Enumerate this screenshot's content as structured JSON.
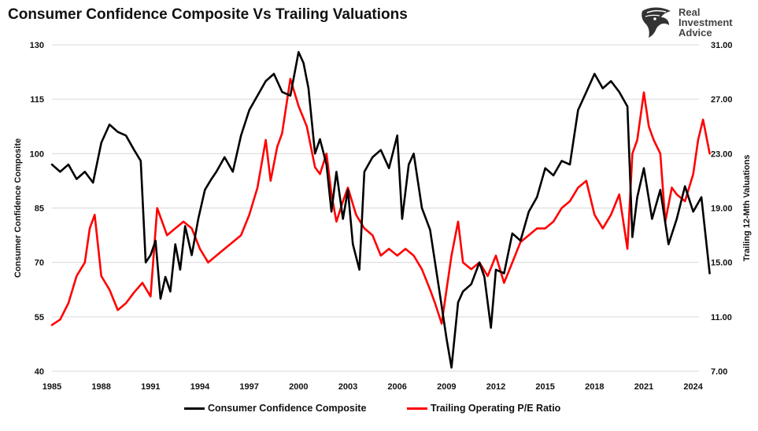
{
  "title": "Consumer Confidence Composite Vs Trailing Valuations",
  "logo": {
    "line1": "Real",
    "line2": "Investment",
    "line3": "Advice",
    "icon": "eagle-head-icon"
  },
  "colors": {
    "confidence": "#000000",
    "pe": "#ff0000",
    "grid": "#d9d9d9"
  },
  "chart_data": {
    "type": "line",
    "title": "Consumer Confidence Composite Vs Trailing Valuations",
    "xlabel": "",
    "ylabel_left": "Consumer Confidence Composite",
    "ylabel_right": "Trailing 12-Mth Valuations",
    "xlim": [
      1985,
      2025.5
    ],
    "ylim_left": [
      40,
      130
    ],
    "ylim_right": [
      7.0,
      31.0
    ],
    "x_ticks": [
      "1985",
      "1988",
      "1991",
      "1994",
      "1997",
      "2000",
      "2003",
      "2006",
      "2009",
      "2012",
      "2015",
      "2018",
      "2021",
      "2024"
    ],
    "y_left_ticks": [
      "130",
      "115",
      "100",
      "85",
      "70",
      "55",
      "40"
    ],
    "y_right_ticks": [
      "31.00",
      "27.00",
      "23.00",
      "19.00",
      "15.00",
      "11.00",
      "7.00"
    ],
    "grid": "horizontal",
    "legend_position": "bottom",
    "series": [
      {
        "name": "Consumer Confidence Composite",
        "axis": "left",
        "x": [
          1985,
          1985.5,
          1986,
          1986.5,
          1987,
          1987.5,
          1988,
          1988.5,
          1989,
          1989.5,
          1990,
          1990.4,
          1990.7,
          1991,
          1991.3,
          1991.6,
          1991.9,
          1992.2,
          1992.5,
          1992.8,
          1993.1,
          1993.5,
          1993.9,
          1994.3,
          1994.7,
          1995,
          1995.5,
          1996,
          1996.5,
          1997,
          1997.5,
          1998,
          1998.5,
          1999,
          1999.5,
          2000,
          2000.3,
          2000.6,
          2001,
          2001.3,
          2001.7,
          2002,
          2002.3,
          2002.7,
          2003,
          2003.3,
          2003.7,
          2004,
          2004.5,
          2005,
          2005.5,
          2006,
          2006.3,
          2006.7,
          2007,
          2007.5,
          2008,
          2008.3,
          2008.7,
          2009,
          2009.3,
          2009.7,
          2010,
          2010.5,
          2011,
          2011.3,
          2011.7,
          2012,
          2012.5,
          2013,
          2013.5,
          2014,
          2014.5,
          2015,
          2015.5,
          2016,
          2016.5,
          2017,
          2017.5,
          2018,
          2018.5,
          2019,
          2019.5,
          2020,
          2020.3,
          2020.6,
          2021,
          2021.5,
          2022,
          2022.5,
          2023,
          2023.5,
          2024,
          2024.5,
          2025
        ],
        "values": [
          97,
          95,
          97,
          93,
          95,
          92,
          103,
          108,
          106,
          105,
          101,
          98,
          70,
          72,
          76,
          60,
          66,
          62,
          75,
          68,
          80,
          72,
          82,
          90,
          93,
          95,
          99,
          95,
          105,
          112,
          116,
          120,
          122,
          117,
          116,
          128,
          125,
          118,
          100,
          104,
          97,
          84,
          95,
          82,
          90,
          75,
          68,
          95,
          99,
          101,
          96,
          105,
          82,
          97,
          100,
          85,
          79,
          70,
          58,
          49,
          41,
          59,
          62,
          64,
          70,
          66,
          52,
          68,
          67,
          78,
          76,
          84,
          88,
          96,
          94,
          98,
          97,
          112,
          117,
          122,
          118,
          120,
          117,
          113,
          77,
          88,
          96,
          82,
          90,
          75,
          82,
          91,
          84,
          88,
          67
        ]
      },
      {
        "name": "Trailing Operating P/E Ratio",
        "axis": "right",
        "x": [
          1985,
          1985.5,
          1986,
          1986.5,
          1987,
          1987.3,
          1987.6,
          1988,
          1988.5,
          1989,
          1989.5,
          1990,
          1990.5,
          1991,
          1991.4,
          1992,
          1992.5,
          1993,
          1993.5,
          1994,
          1994.5,
          1995,
          1995.5,
          1996,
          1996.5,
          1997,
          1997.5,
          1998,
          1998.3,
          1998.7,
          1999,
          1999.5,
          2000,
          2000.5,
          2001,
          2001.3,
          2001.7,
          2002,
          2002.3,
          2002.7,
          2003,
          2003.5,
          2004,
          2004.5,
          2005,
          2005.5,
          2006,
          2006.5,
          2007,
          2007.5,
          2008,
          2008.3,
          2008.7,
          2009,
          2009.3,
          2009.7,
          2010,
          2010.5,
          2011,
          2011.5,
          2012,
          2012.5,
          2013,
          2013.5,
          2014,
          2014.5,
          2015,
          2015.5,
          2016,
          2016.5,
          2017,
          2017.5,
          2018,
          2018.5,
          2019,
          2019.5,
          2020,
          2020.3,
          2020.6,
          2021,
          2021.3,
          2021.6,
          2022,
          2022.3,
          2022.7,
          2023,
          2023.5,
          2024,
          2024.3,
          2024.6,
          2025
        ],
        "values": [
          10.4,
          10.8,
          12.0,
          14.0,
          15.0,
          17.5,
          18.5,
          14.0,
          13.0,
          11.5,
          12.0,
          12.8,
          13.5,
          12.5,
          19.0,
          17.0,
          17.5,
          18.0,
          17.5,
          16.0,
          15.0,
          15.5,
          16.0,
          16.5,
          17.0,
          18.5,
          20.5,
          24.0,
          21.0,
          23.5,
          24.5,
          28.5,
          26.5,
          25.0,
          22.0,
          21.5,
          23.0,
          20.0,
          18.0,
          19.5,
          20.5,
          18.5,
          17.5,
          17.0,
          15.5,
          16.0,
          15.5,
          16.0,
          15.5,
          14.5,
          13.0,
          12.0,
          10.5,
          13.0,
          15.5,
          18.0,
          15.0,
          14.5,
          15.0,
          14.0,
          15.5,
          13.5,
          15.0,
          16.5,
          17.0,
          17.5,
          17.5,
          18.0,
          19.0,
          19.5,
          20.5,
          21.0,
          18.5,
          17.5,
          18.5,
          20.0,
          16.0,
          23.0,
          24.0,
          27.5,
          25.0,
          24.0,
          23.0,
          18.0,
          20.5,
          20.0,
          19.5,
          21.5,
          24.0,
          25.5,
          23.0
        ]
      }
    ]
  }
}
